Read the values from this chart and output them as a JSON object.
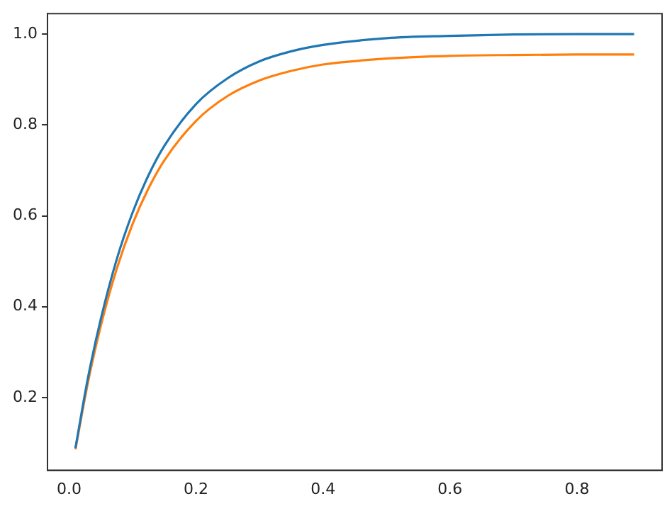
{
  "chart_data": {
    "type": "line",
    "x": [
      0.01,
      0.03,
      0.05,
      0.075,
      0.1,
      0.125,
      0.15,
      0.2,
      0.25,
      0.3,
      0.35,
      0.4,
      0.5,
      0.6,
      0.7,
      0.8,
      0.89
    ],
    "series": [
      {
        "color": "#1f77b4",
        "values": [
          0.089,
          0.245,
          0.373,
          0.504,
          0.607,
          0.689,
          0.754,
          0.846,
          0.903,
          0.94,
          0.962,
          0.976,
          0.991,
          0.996,
          0.999,
          1.0,
          1.0
        ]
      },
      {
        "color": "#ff7f0e",
        "values": [
          0.086,
          0.235,
          0.358,
          0.483,
          0.582,
          0.66,
          0.722,
          0.809,
          0.864,
          0.898,
          0.919,
          0.933,
          0.946,
          0.952,
          0.954,
          0.955,
          0.955
        ]
      }
    ],
    "xlim": [
      -0.034,
      0.934
    ],
    "ylim": [
      0.04,
      1.045
    ],
    "xticks": [
      {
        "value": 0,
        "label": "0.0"
      },
      0.2,
      0.4,
      0.6,
      0.8
    ],
    "yticks": [
      0.2,
      0.4,
      0.6,
      0.8,
      {
        "value": 1,
        "label": "1.0"
      }
    ],
    "grid": false,
    "legend": false,
    "marker": "none",
    "line_style": "solid"
  }
}
